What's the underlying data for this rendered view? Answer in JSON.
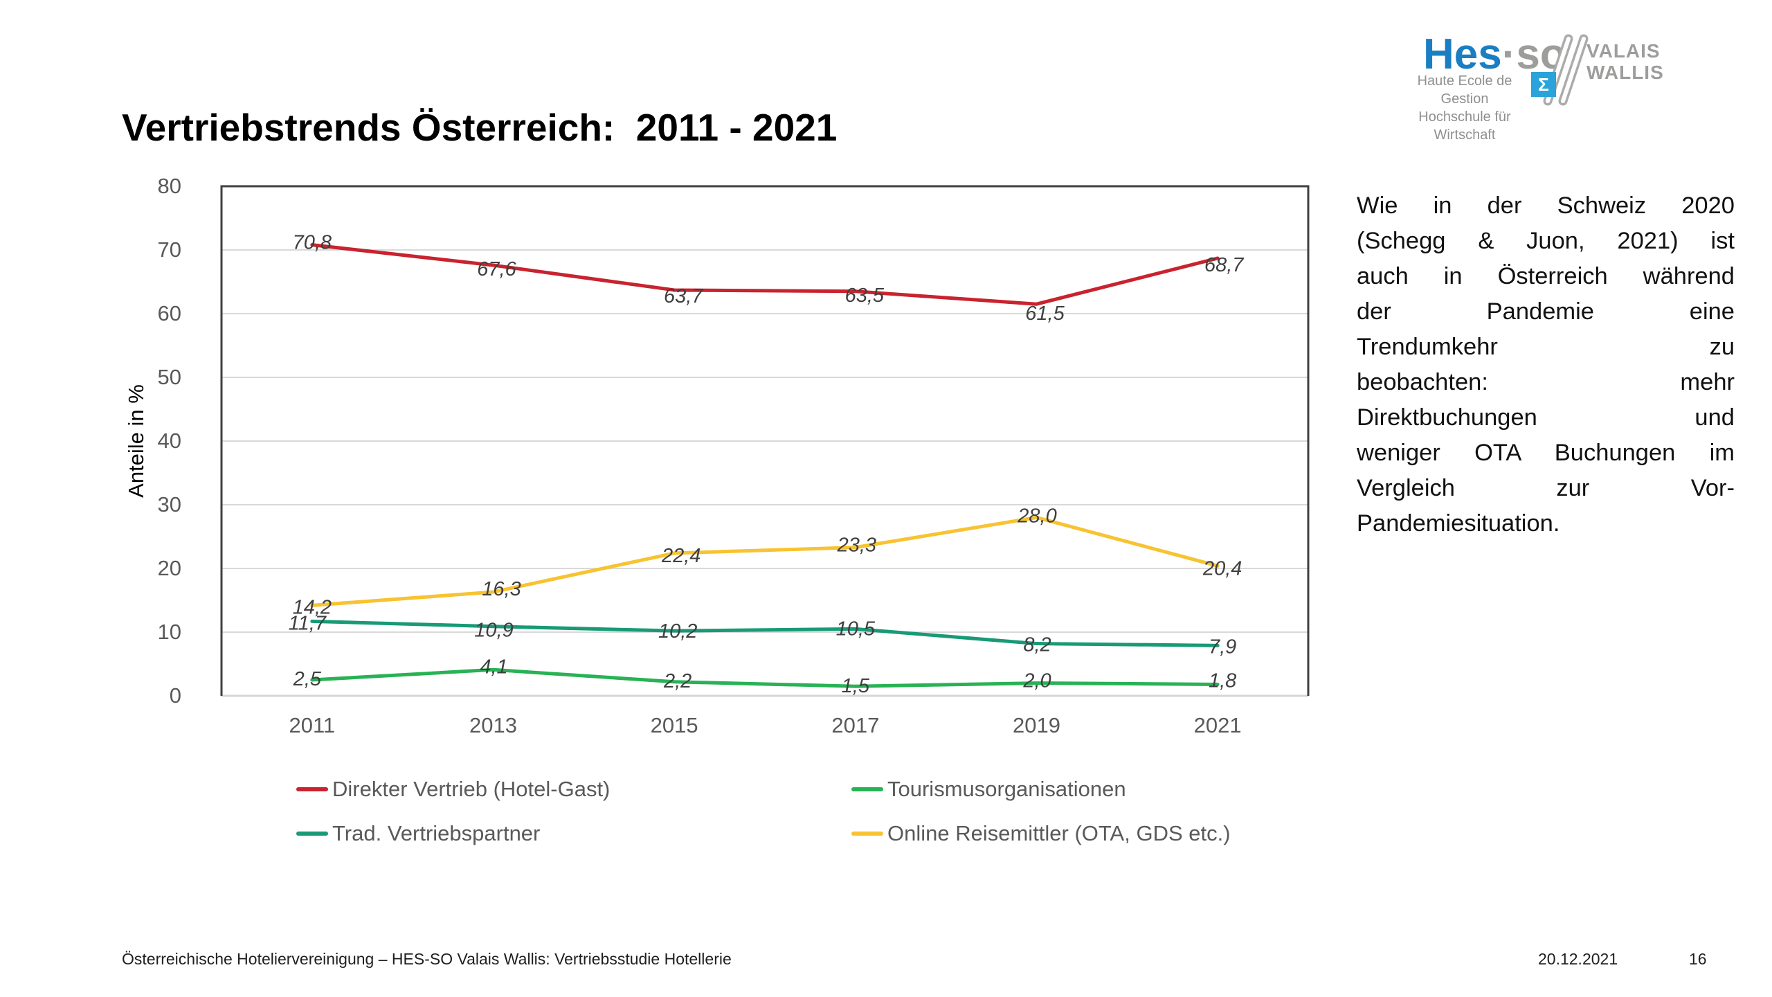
{
  "slide_title": "Vertriebstrends Österreich:  2011 - 2021",
  "logo": {
    "brand_primary": "Hes",
    "brand_secondary": "·so",
    "region_top": "VALAIS",
    "region_bottom": "WALLIS",
    "subtitle_line1": "Haute Ecole de Gestion",
    "subtitle_line2": "Hochschule für Wirtschaft",
    "sigma_glyph": "Σ",
    "brand_blue": "#1B7EC3",
    "brand_gray": "#9D9D9C",
    "sigma_bg": "#2AA3DB"
  },
  "chart_data": {
    "type": "line",
    "title": "",
    "xlabel": "",
    "ylabel": "Anteile in %",
    "categories": [
      "2011",
      "2013",
      "2015",
      "2017",
      "2019",
      "2021"
    ],
    "ylim": [
      0,
      80
    ],
    "ytick_step": 10,
    "grid": true,
    "decimal_separator": ",",
    "legend_position": "bottom",
    "series": [
      {
        "name": "Direkter Vertrieb (Hotel-Gast)",
        "color": "#C8232E",
        "values": [
          70.8,
          67.6,
          63.7,
          63.5,
          61.5,
          68.7
        ],
        "point_labels": [
          "70,8",
          "67,6",
          "63,7",
          "63,5",
          "61,5",
          "68,7"
        ]
      },
      {
        "name": "Trad. Vertriebspartner",
        "color": "#189A76",
        "values": [
          11.7,
          10.9,
          10.2,
          10.5,
          8.2,
          7.9
        ],
        "point_labels": [
          "11,7",
          "10,9",
          "10,2",
          "10,5",
          "8,2",
          "7,9"
        ]
      },
      {
        "name": "Tourismusorganisationen",
        "color": "#28B255",
        "values": [
          2.5,
          4.1,
          2.2,
          1.5,
          2.0,
          1.8
        ],
        "point_labels": [
          "2,5",
          "4,1",
          "2,2",
          "1,5",
          "2,0",
          "1,8"
        ]
      },
      {
        "name": "Online Reisemittler (OTA, GDS etc.)",
        "color": "#F7C331",
        "values": [
          14.2,
          16.3,
          22.4,
          23.3,
          28.0,
          20.4
        ],
        "point_labels": [
          "14,2",
          "16,3",
          "22,4",
          "23,3",
          "28,0",
          "20,4"
        ]
      }
    ],
    "legend_order_rows": [
      [
        0,
        2
      ],
      [
        1,
        3
      ]
    ]
  },
  "commentary": {
    "lines": [
      "Wie in der Schweiz 2020",
      "(Schegg & Juon, 2021) ist",
      "auch in Österreich während",
      "der Pandemie eine",
      "Trendumkehr zu",
      "beobachten: mehr",
      "Direktbuchungen und",
      "weniger OTA Buchungen im",
      "Vergleich zur Vor-",
      "Pandemiesituation."
    ]
  },
  "footer": {
    "left": "Österreichische Hoteliervereinigung – HES-SO Valais Wallis: Vertriebsstudie Hotellerie",
    "date": "20.12.2021",
    "page": "16"
  }
}
